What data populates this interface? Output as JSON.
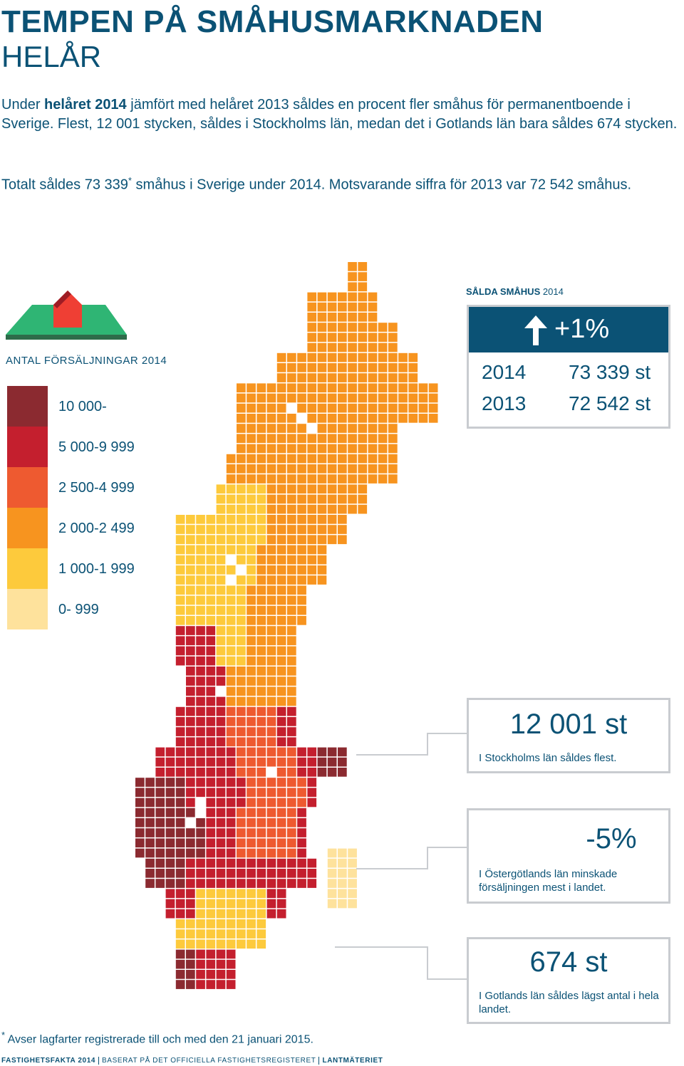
{
  "header": {
    "title": "TEMPEN PÅ SMÅHUSMARKNADEN",
    "subtitle": "HELÅR"
  },
  "intro": {
    "before": "Under",
    "bold": "helåret 2014",
    "after": "jämfört med helåret 2013 såldes en procent fler småhus för permanentboende i Sverige. Flest, 12 001 stycken, såldes i Stockholms län, medan det i Gotlands län bara såldes 674 stycken."
  },
  "total": {
    "before": "Totalt såldes 73 339",
    "mark": "*",
    "after": "småhus i Sverige under 2014. Motsvarande siffra för 2013 var 72 542 småhus."
  },
  "legend": {
    "title": "ANTAL FÖRSÄLJNINGAR 2014",
    "items": [
      {
        "label": "10 000-",
        "color": "#8b2a30"
      },
      {
        "label": "5 000-9 999",
        "color": "#c41f2e"
      },
      {
        "label": "2 500-4 999",
        "color": "#ee5a30"
      },
      {
        "label": "2 000-2 499",
        "color": "#f7941f"
      },
      {
        "label": "1 000-1 999",
        "color": "#fdca3c"
      },
      {
        "label": "0- 999",
        "color": "#fee29c"
      }
    ]
  },
  "summary": {
    "title": "SÅLDA SMÅHUS",
    "year": "2014",
    "change": "+1%",
    "rows": [
      [
        "2014",
        "73 339 st"
      ],
      [
        "2013",
        "72 542 st"
      ]
    ]
  },
  "callouts": [
    {
      "value": "12 001 st",
      "text": "I Stockholms län såldes flest."
    },
    {
      "value": "-5%",
      "text": "I Östergötlands län minskade försäljningen mest i landet."
    },
    {
      "value": "674 st",
      "text": "I Gotlands län såldes lägst antal i hela landet."
    }
  ],
  "footnote": {
    "mark": "*",
    "text": "Avser lagfarter registrerade till och med den 21 januari 2015."
  },
  "footer": [
    "FASTIGHETSFAKTA 2014",
    "BASERAT PÅ DET OFFICIELLA FASTIGHETSREGISTERET",
    "LANTMÄTERIET"
  ]
}
